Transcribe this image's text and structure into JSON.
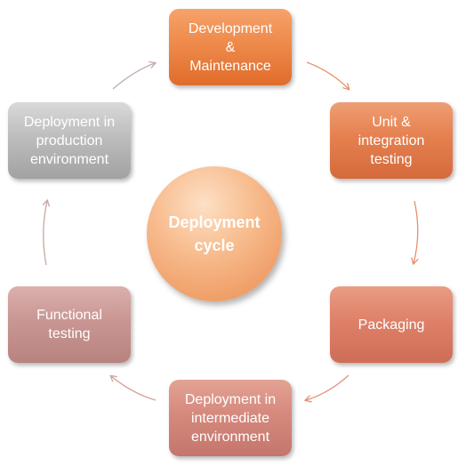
{
  "center": {
    "line1": "Deployment",
    "line2": "cycle"
  },
  "stages": [
    {
      "lines": [
        "Development",
        "&",
        "Maintenance"
      ]
    },
    {
      "lines": [
        "Unit &",
        "integration",
        "testing"
      ]
    },
    {
      "lines": [
        "Packaging"
      ]
    },
    {
      "lines": [
        "Deployment in",
        "intermediate",
        "environment"
      ]
    },
    {
      "lines": [
        "Functional",
        "testing"
      ]
    },
    {
      "lines": [
        "Deployment in",
        "production",
        "environment"
      ]
    }
  ],
  "colors": {
    "development": "#ee8a4b",
    "unit_testing": "#e5804f",
    "packaging": "#de8168",
    "intermediate": "#d5897d",
    "functional": "#c99693",
    "production": "#bdbdbd",
    "center": "#f4ad7a",
    "arrow_warm": "#e8906a",
    "arrow_cool": "#c8a6a2"
  }
}
